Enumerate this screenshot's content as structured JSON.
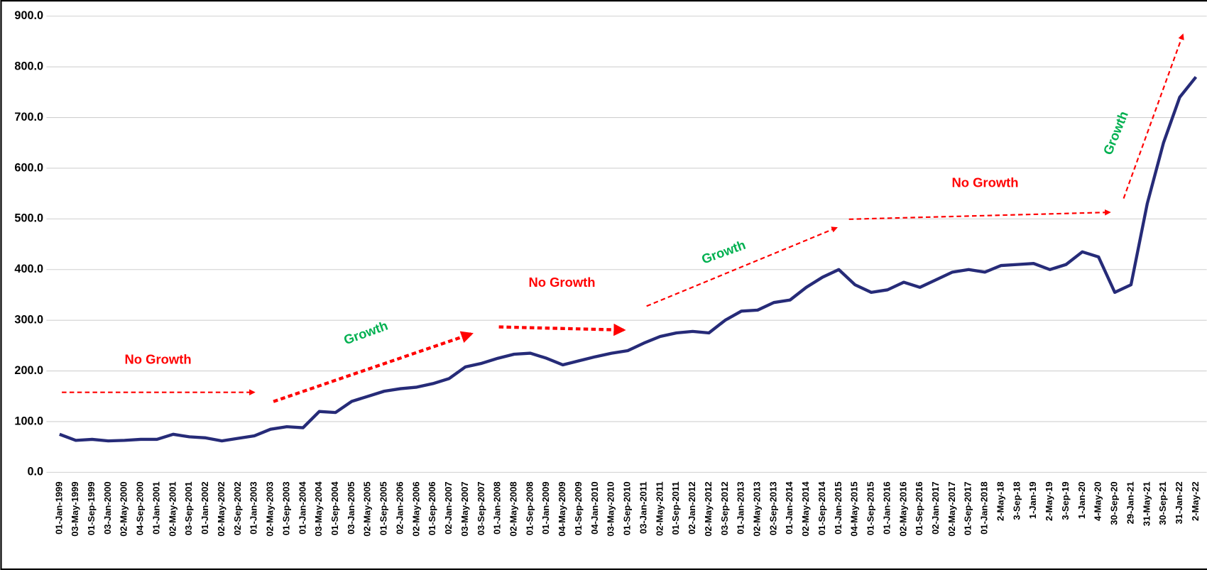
{
  "chart_data": {
    "type": "line",
    "categories": [
      "01-Jan-1999",
      "03-May-1999",
      "01-Sep-1999",
      "03-Jan-2000",
      "02-May-2000",
      "04-Sep-2000",
      "01-Jan-2001",
      "02-May-2001",
      "03-Sep-2001",
      "01-Jan-2002",
      "02-May-2002",
      "02-Sep-2002",
      "01-Jan-2003",
      "02-May-2003",
      "01-Sep-2003",
      "01-Jan-2004",
      "03-May-2004",
      "01-Sep-2004",
      "03-Jan-2005",
      "02-May-2005",
      "01-Sep-2005",
      "02-Jan-2006",
      "02-May-2006",
      "01-Sep-2006",
      "02-Jan-2007",
      "03-May-2007",
      "03-Sep-2007",
      "01-Jan-2008",
      "02-May-2008",
      "01-Sep-2008",
      "01-Jan-2009",
      "04-May-2009",
      "01-Sep-2009",
      "04-Jan-2010",
      "03-May-2010",
      "01-Sep-2010",
      "03-Jan-2011",
      "02-May-2011",
      "01-Sep-2011",
      "02-Jan-2012",
      "02-May-2012",
      "03-Sep-2012",
      "01-Jan-2013",
      "02-May-2013",
      "02-Sep-2013",
      "01-Jan-2014",
      "02-May-2014",
      "01-Sep-2014",
      "01-Jan-2015",
      "04-May-2015",
      "01-Sep-2015",
      "01-Jan-2016",
      "02-May-2016",
      "01-Sep-2016",
      "02-Jan-2017",
      "02-May-2017",
      "01-Sep-2017",
      "01-Jan-2018",
      "2-May-18",
      "3-Sep-18",
      "1-Jan-19",
      "2-May-19",
      "3-Sep-19",
      "1-Jan-20",
      "4-May-20",
      "30-Sep-20",
      "29-Jan-21",
      "31-May-21",
      "30-Sep-21",
      "31-Jan-22",
      "2-May-22"
    ],
    "series": [
      {
        "color": "#262b78",
        "values": [
          75,
          63,
          65,
          62,
          63,
          65,
          65,
          75,
          70,
          68,
          62,
          67,
          72,
          85,
          90,
          88,
          120,
          118,
          140,
          150,
          160,
          165,
          168,
          175,
          185,
          208,
          215,
          225,
          233,
          235,
          225,
          212,
          220,
          228,
          235,
          240,
          255,
          268,
          275,
          278,
          275,
          300,
          318,
          320,
          335,
          340,
          365,
          385,
          400,
          370,
          355,
          360,
          375,
          365,
          380,
          395,
          400,
          395,
          408,
          410,
          412,
          400,
          410,
          435,
          425,
          355,
          370,
          530,
          650,
          740,
          780
        ]
      }
    ],
    "ylim": [
      0,
      900
    ],
    "yticks": [
      {
        "value": 0,
        "label": "0.0"
      },
      {
        "value": 100,
        "label": "100.0"
      },
      {
        "value": 200,
        "label": "200.0"
      },
      {
        "value": 300,
        "label": "300.0"
      },
      {
        "value": 400,
        "label": "400.0"
      },
      {
        "value": 500,
        "label": "500.0"
      },
      {
        "value": 600,
        "label": "600.0"
      },
      {
        "value": 700,
        "label": "700.0"
      },
      {
        "value": 800,
        "label": "800.0"
      },
      {
        "value": 900,
        "label": "900.0"
      }
    ],
    "grid": true,
    "annotations": [
      "No Growth",
      "Growth",
      "No Growth",
      "Growth",
      "No Growth",
      "Growth"
    ]
  }
}
